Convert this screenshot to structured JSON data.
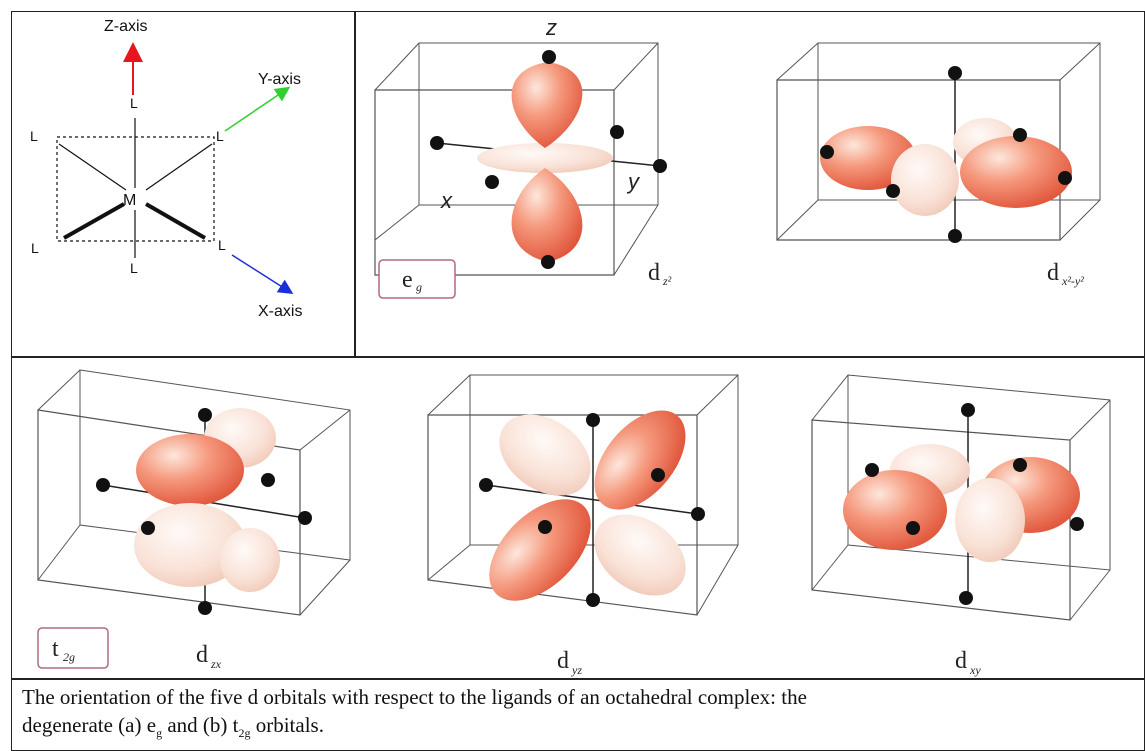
{
  "axes": {
    "z_label": "Z-axis",
    "y_label": "Y-axis",
    "x_label": "X-axis",
    "z_color": "#e8141e",
    "y_color": "#2fd12f",
    "x_color": "#1b2fd8",
    "center": "M",
    "ligand": "L"
  },
  "eg_panel": {
    "group_label": "e",
    "group_sub": "g",
    "orbitals": [
      {
        "name": "d",
        "sub": "z²",
        "axis_z": "z",
        "axis_x": "x",
        "axis_y": "y"
      },
      {
        "name": "d",
        "sub": "x²-y²"
      }
    ]
  },
  "t2g_panel": {
    "group_label": "t",
    "group_sub": "2g",
    "orbitals": [
      {
        "name": "d",
        "sub": "zx"
      },
      {
        "name": "d",
        "sub": "yz"
      },
      {
        "name": "d",
        "sub": "xy"
      }
    ]
  },
  "caption": {
    "line1": "The orientation of the five d orbitals with respect to the ligands of an octahedral complex: the",
    "line2_prefix": "degenerate (a) e",
    "line2_sub1": "g",
    "line2_mid": " and (b) t",
    "line2_sub2": "2g",
    "line2_suffix": " orbitals."
  },
  "colors": {
    "lobe_dark": "#e8684a",
    "lobe_light": "#f7d7c9",
    "lobe_highlight": "#fde7dc"
  }
}
